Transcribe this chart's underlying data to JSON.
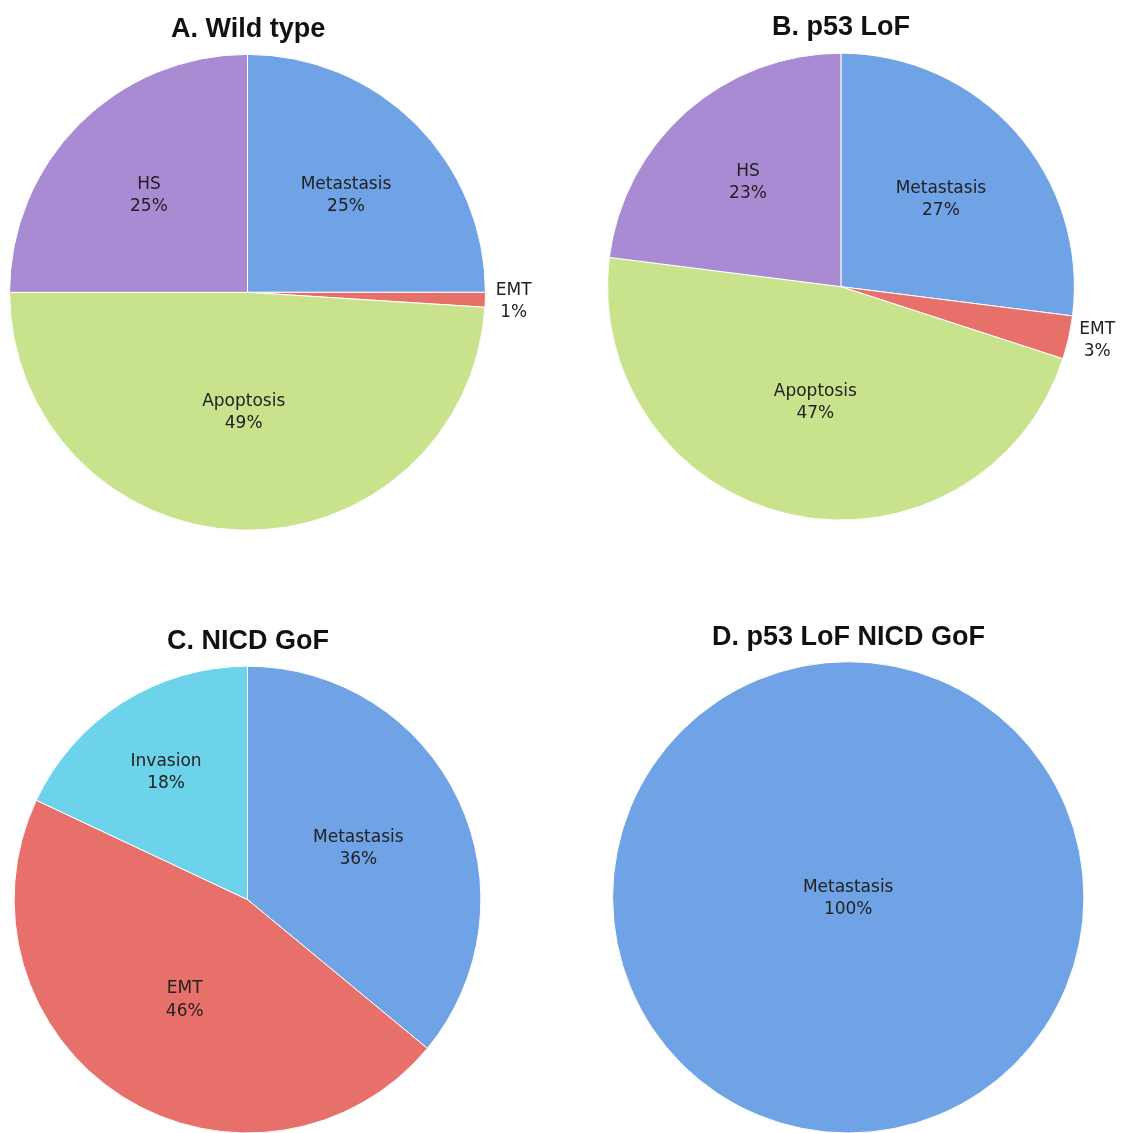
{
  "chart_data": [
    {
      "type": "pie",
      "title": "A. Wild type",
      "categories": [
        "Metastasis",
        "EMT",
        "Apoptosis",
        "HS"
      ],
      "values": [
        25,
        1,
        49,
        25
      ],
      "value_labels": [
        "25%",
        "1%",
        "49%",
        "25%"
      ],
      "colors": [
        "#6fa3e6",
        "#e8706a",
        "#c9e38c",
        "#a98bd3"
      ]
    },
    {
      "type": "pie",
      "title": "B. p53 LoF",
      "categories": [
        "Metastasis",
        "EMT",
        "Apoptosis",
        "HS"
      ],
      "values": [
        27,
        3,
        47,
        23
      ],
      "value_labels": [
        "27%",
        "3%",
        "47%",
        "23%"
      ],
      "colors": [
        "#6fa3e6",
        "#e8706a",
        "#c9e38c",
        "#a98bd3"
      ]
    },
    {
      "type": "pie",
      "title": "C. NICD GoF",
      "categories": [
        "Metastasis",
        "EMT",
        "Invasion"
      ],
      "values": [
        36,
        46,
        18
      ],
      "value_labels": [
        "36%",
        "46%",
        "18%"
      ],
      "colors": [
        "#6fa3e6",
        "#e8706a",
        "#6dd3ea"
      ]
    },
    {
      "type": "pie",
      "title": "D. p53 LoF NICD GoF",
      "categories": [
        "Metastasis"
      ],
      "values": [
        100
      ],
      "value_labels": [
        "100%"
      ],
      "colors": [
        "#6fa3e6"
      ]
    }
  ]
}
